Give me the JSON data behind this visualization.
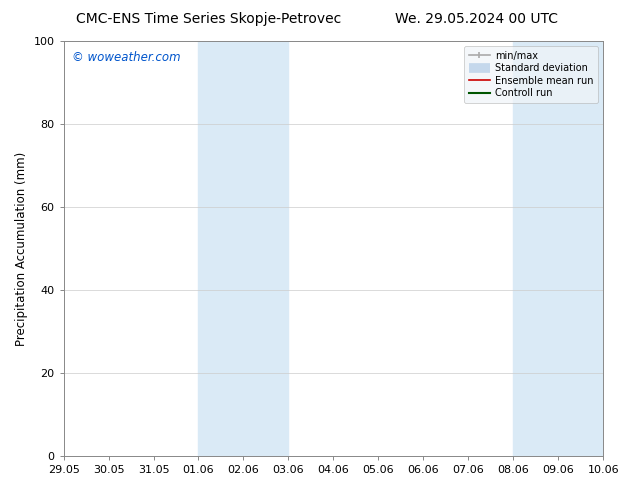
{
  "title_left": "CMC-ENS Time Series Skopje-Petrovec",
  "title_right": "We. 29.05.2024 00 UTC",
  "ylabel": "Precipitation Accumulation (mm)",
  "watermark": "© woweather.com",
  "watermark_color": "#0055cc",
  "xlim_left": 0,
  "xlim_right": 12,
  "ylim_bottom": 0,
  "ylim_top": 100,
  "yticks": [
    0,
    20,
    40,
    60,
    80,
    100
  ],
  "xtick_labels": [
    "29.05",
    "30.05",
    "31.05",
    "01.06",
    "02.06",
    "03.06",
    "04.06",
    "05.06",
    "06.06",
    "07.06",
    "08.06",
    "09.06",
    "10.06"
  ],
  "xtick_positions": [
    0,
    1,
    2,
    3,
    4,
    5,
    6,
    7,
    8,
    9,
    10,
    11,
    12
  ],
  "shaded_bands": [
    {
      "x_start": 3,
      "x_end": 5,
      "color": "#daeaf6"
    },
    {
      "x_start": 10,
      "x_end": 12,
      "color": "#daeaf6"
    }
  ],
  "legend_entries": [
    {
      "label": "min/max",
      "color": "#aaaaaa",
      "lw": 1.2
    },
    {
      "label": "Standard deviation",
      "color": "#c5d8ec",
      "lw": 7
    },
    {
      "label": "Ensemble mean run",
      "color": "#cc0000",
      "lw": 1.2
    },
    {
      "label": "Controll run",
      "color": "#005500",
      "lw": 1.5
    }
  ],
  "bg_color": "#ffffff",
  "plot_bg_color": "#ffffff",
  "grid_color": "#cccccc",
  "title_fontsize": 10,
  "label_fontsize": 8.5,
  "tick_fontsize": 8
}
